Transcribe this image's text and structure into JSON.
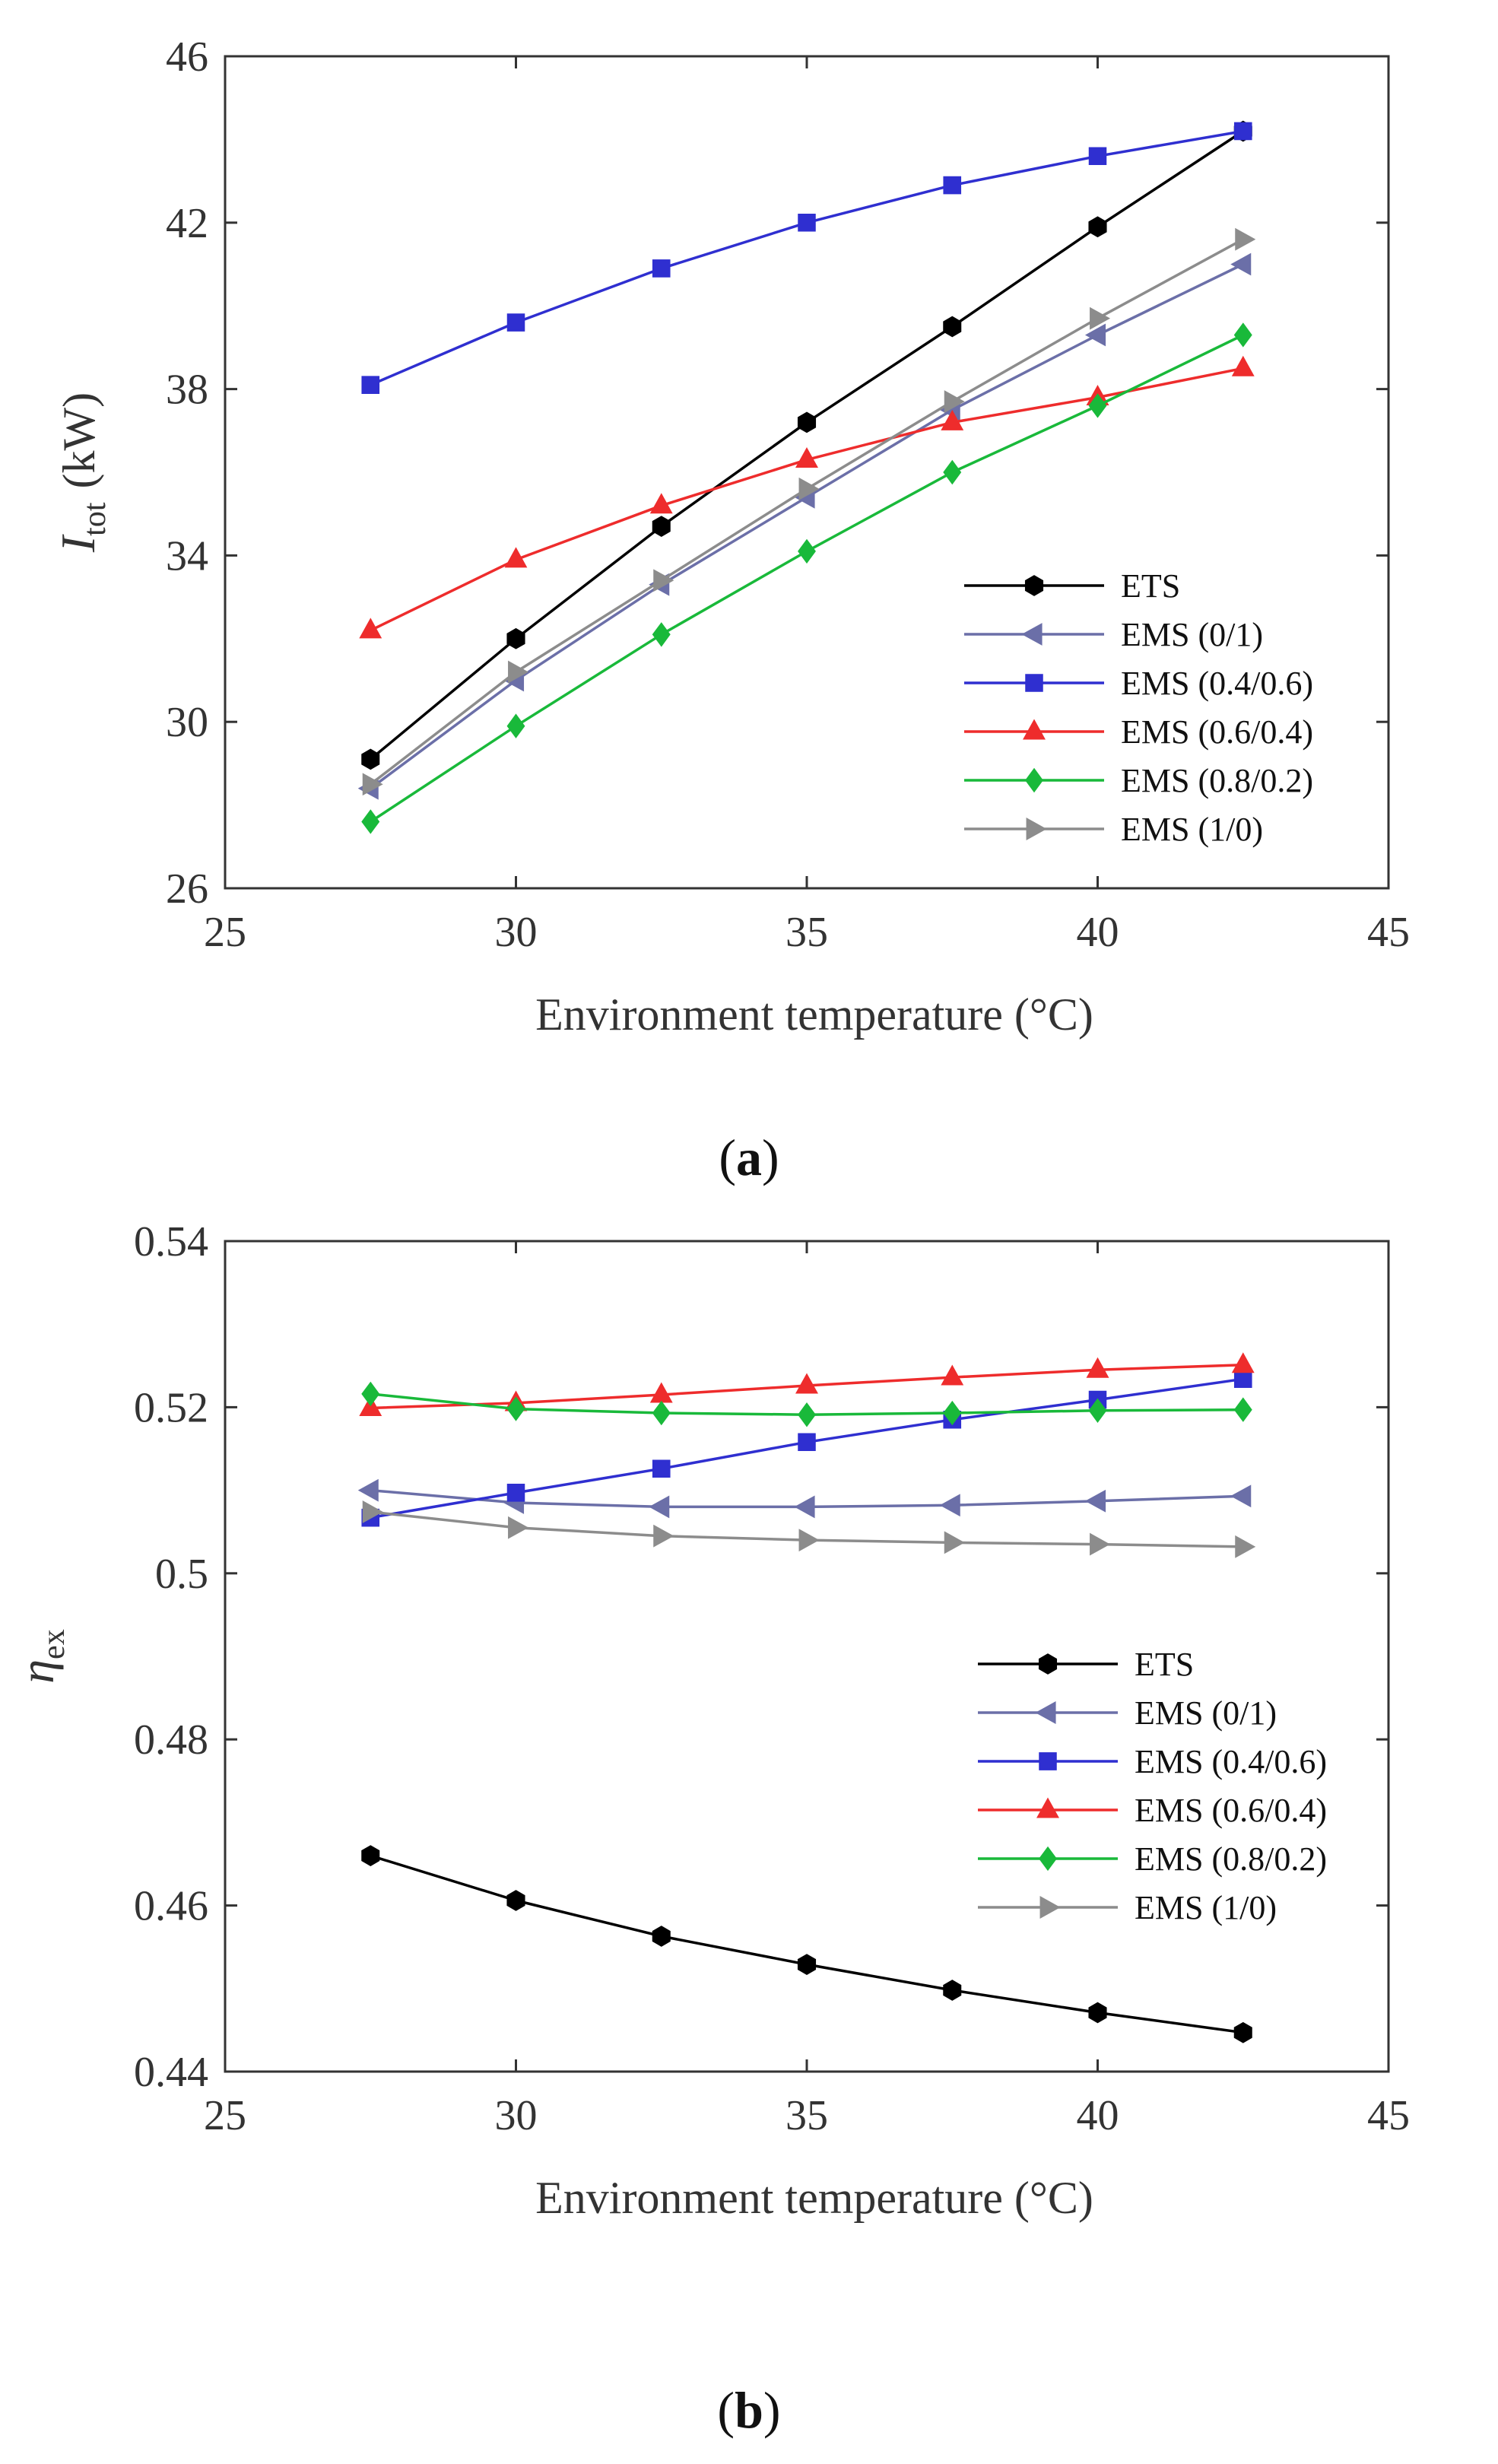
{
  "chart_data": [
    {
      "panel": "a",
      "type": "line",
      "title": "",
      "xlabel": "Environment temperature (°C)",
      "ylabel_main": "I",
      "ylabel_sub": "tot",
      "ylabel_unit": "(kW)",
      "xlim": [
        25,
        45
      ],
      "ylim": [
        26,
        46
      ],
      "xticks": [
        25,
        30,
        35,
        40,
        45
      ],
      "yticks": [
        26,
        30,
        34,
        38,
        42,
        46
      ],
      "grid": false,
      "legend_position": "lower-right",
      "x": [
        27.5,
        30,
        32.5,
        35,
        37.5,
        40,
        42.5
      ],
      "series": [
        {
          "name": "ETS",
          "color": "#000000",
          "marker": "hexagon",
          "values": [
            29.1,
            32.0,
            34.7,
            37.2,
            39.5,
            41.9,
            44.2
          ]
        },
        {
          "name": "EMS (0/1)",
          "color": "#6b6fa8",
          "marker": "triangle-left",
          "values": [
            28.4,
            31.0,
            33.3,
            35.4,
            37.5,
            39.3,
            41.0
          ]
        },
        {
          "name": "EMS (0.4/0.6)",
          "color": "#2f2fd0",
          "marker": "square",
          "values": [
            38.1,
            39.6,
            40.9,
            42.0,
            42.9,
            43.6,
            44.2
          ]
        },
        {
          "name": "EMS (0.6/0.4)",
          "color": "#ee2c2c",
          "marker": "triangle-up",
          "values": [
            32.2,
            33.9,
            35.2,
            36.3,
            37.2,
            37.8,
            38.5
          ]
        },
        {
          "name": "EMS (0.8/0.2)",
          "color": "#19b93a",
          "marker": "diamond",
          "values": [
            27.6,
            29.9,
            32.1,
            34.1,
            36.0,
            37.6,
            39.3
          ]
        },
        {
          "name": "EMS (1/0)",
          "color": "#8c8c8c",
          "marker": "triangle-right",
          "values": [
            28.5,
            31.2,
            33.4,
            35.6,
            37.7,
            39.7,
            41.6
          ]
        }
      ]
    },
    {
      "panel": "b",
      "type": "line",
      "title": "",
      "xlabel": "Environment temperature (°C)",
      "ylabel_main": "η",
      "ylabel_sub": "ex",
      "ylabel_unit": "",
      "xlim": [
        25,
        45
      ],
      "ylim": [
        0.44,
        0.54
      ],
      "xticks": [
        25,
        30,
        35,
        40,
        45
      ],
      "yticks": [
        0.44,
        0.46,
        0.48,
        0.5,
        0.52,
        0.54
      ],
      "ytick_labels": [
        "0.44",
        "0.46",
        "0.48",
        "0.5",
        "0.52",
        "0.54"
      ],
      "grid": false,
      "legend_position": "lower-right",
      "x": [
        27.5,
        30,
        32.5,
        35,
        37.5,
        40,
        42.5
      ],
      "series": [
        {
          "name": "ETS",
          "color": "#000000",
          "marker": "hexagon",
          "values": [
            0.466,
            0.4606,
            0.4563,
            0.4529,
            0.4498,
            0.4471,
            0.4447
          ]
        },
        {
          "name": "EMS (0/1)",
          "color": "#6b6fa8",
          "marker": "triangle-left",
          "values": [
            0.51,
            0.5085,
            0.508,
            0.508,
            0.5082,
            0.5087,
            0.5093
          ]
        },
        {
          "name": "EMS (0.4/0.6)",
          "color": "#2f2fd0",
          "marker": "square",
          "values": [
            0.5067,
            0.5097,
            0.5126,
            0.5158,
            0.5185,
            0.5209,
            0.5234
          ]
        },
        {
          "name": "EMS (0.6/0.4)",
          "color": "#ee2c2c",
          "marker": "triangle-up",
          "values": [
            0.5199,
            0.5205,
            0.5215,
            0.5226,
            0.5236,
            0.5245,
            0.5251
          ]
        },
        {
          "name": "EMS (0.8/0.2)",
          "color": "#19b93a",
          "marker": "diamond",
          "values": [
            0.5216,
            0.5198,
            0.5193,
            0.5191,
            0.5193,
            0.5196,
            0.5197
          ]
        },
        {
          "name": "EMS (1/0)",
          "color": "#8c8c8c",
          "marker": "triangle-right",
          "values": [
            0.5074,
            0.5055,
            0.5045,
            0.504,
            0.5037,
            0.5035,
            0.5032
          ]
        }
      ]
    }
  ],
  "panel_labels": [
    {
      "open": "(",
      "letter": "a",
      "close": ")"
    },
    {
      "open": "(",
      "letter": "b",
      "close": ")"
    }
  ]
}
